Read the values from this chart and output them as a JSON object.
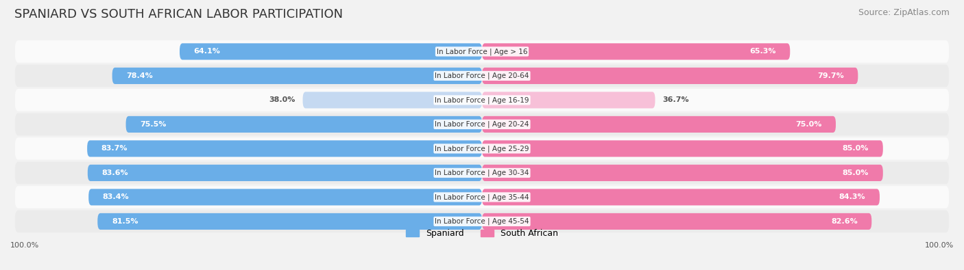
{
  "title": "SPANIARD VS SOUTH AFRICAN LABOR PARTICIPATION",
  "source": "Source: ZipAtlas.com",
  "categories": [
    "In Labor Force | Age > 16",
    "In Labor Force | Age 20-64",
    "In Labor Force | Age 16-19",
    "In Labor Force | Age 20-24",
    "In Labor Force | Age 25-29",
    "In Labor Force | Age 30-34",
    "In Labor Force | Age 35-44",
    "In Labor Force | Age 45-54"
  ],
  "spaniard_values": [
    64.1,
    78.4,
    38.0,
    75.5,
    83.7,
    83.6,
    83.4,
    81.5
  ],
  "south_african_values": [
    65.3,
    79.7,
    36.7,
    75.0,
    85.0,
    85.0,
    84.3,
    82.6
  ],
  "spaniard_color_dark": "#6aaee8",
  "spaniard_color_light": "#c5d9f1",
  "south_african_color_dark": "#f07aaa",
  "south_african_color_light": "#f7c0d8",
  "bar_height": 0.68,
  "background_color": "#f2f2f2",
  "row_bg_odd": "#fafafa",
  "row_bg_even": "#ebebeb",
  "legend_spaniard": "Spaniard",
  "legend_south_african": "South African",
  "axis_label_left": "100.0%",
  "axis_label_right": "100.0%",
  "title_fontsize": 13,
  "source_fontsize": 9,
  "value_fontsize": 8,
  "category_fontsize": 7.5,
  "legend_fontsize": 9,
  "light_threshold": 50
}
